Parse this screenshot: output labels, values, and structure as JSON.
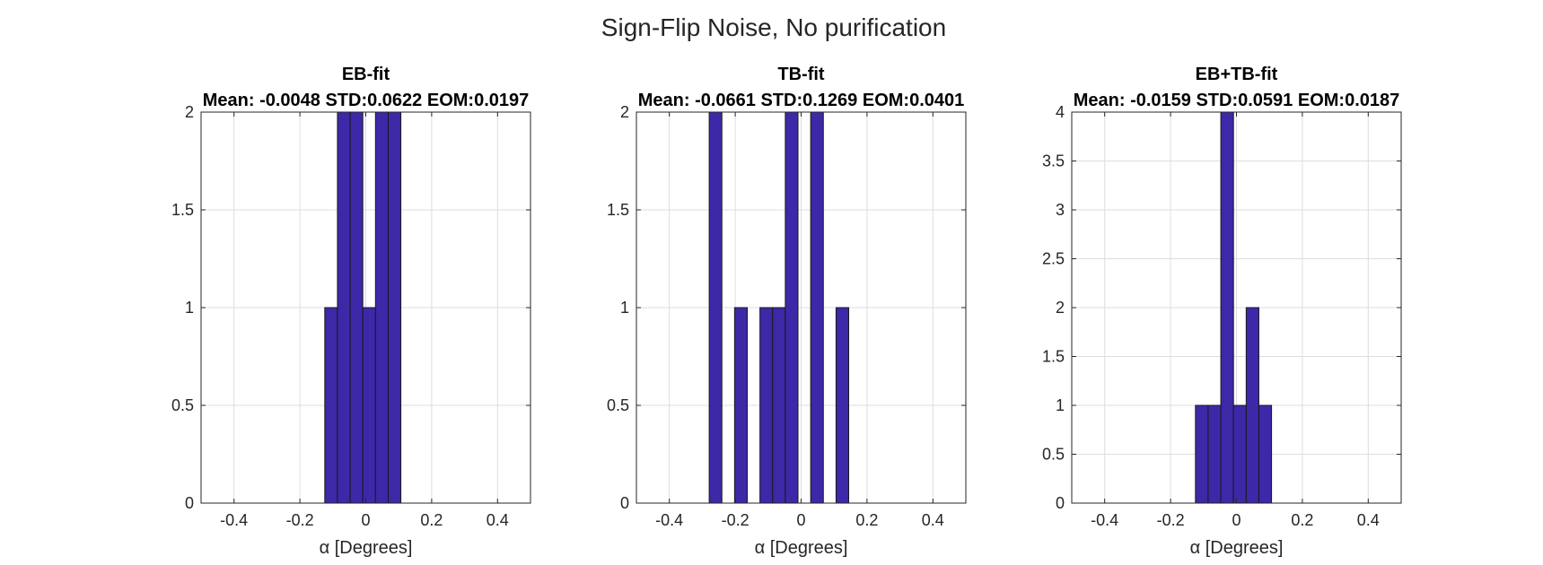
{
  "figure_title": "Sign-Flip Noise, No purification",
  "colors": {
    "bar_fill": "#3d28a8",
    "bar_edge": "#1a1a1a",
    "grid": "#dedede"
  },
  "chart_data": [
    {
      "type": "bar",
      "title": "EB-fit",
      "subtitle": "Mean: -0.0048 STD:0.0622 EOM:0.0197",
      "xlabel": "α [Degrees]",
      "ylabel": "",
      "xlim": [
        -0.5,
        0.5
      ],
      "ylim": [
        0,
        2
      ],
      "xticks": [
        "-0.4",
        "-0.2",
        "0",
        "0.2",
        "0.4"
      ],
      "yticks": [
        "0",
        "0.5",
        "1",
        "1.5",
        "2"
      ],
      "grid": true,
      "bin_width": 0.0385,
      "bins": [
        {
          "x0": -0.1245,
          "count": 1
        },
        {
          "x0": -0.086,
          "count": 2
        },
        {
          "x0": -0.0475,
          "count": 2
        },
        {
          "x0": -0.009,
          "count": 1
        },
        {
          "x0": 0.0295,
          "count": 2
        },
        {
          "x0": 0.068,
          "count": 2
        }
      ]
    },
    {
      "type": "bar",
      "title": "TB-fit",
      "subtitle": "Mean: -0.0661 STD:0.1269 EOM:0.0401",
      "xlabel": "α [Degrees]",
      "ylabel": "",
      "xlim": [
        -0.5,
        0.5
      ],
      "ylim": [
        0,
        2
      ],
      "xticks": [
        "-0.4",
        "-0.2",
        "0",
        "0.2",
        "0.4"
      ],
      "yticks": [
        "0",
        "0.5",
        "1",
        "1.5",
        "2"
      ],
      "grid": true,
      "bin_width": 0.0385,
      "bins": [
        {
          "x0": -0.279,
          "count": 2
        },
        {
          "x0": -0.202,
          "count": 1
        },
        {
          "x0": -0.125,
          "count": 1
        },
        {
          "x0": -0.0865,
          "count": 1
        },
        {
          "x0": -0.048,
          "count": 2
        },
        {
          "x0": 0.029,
          "count": 2
        },
        {
          "x0": 0.106,
          "count": 1
        }
      ]
    },
    {
      "type": "bar",
      "title": "EB+TB-fit",
      "subtitle": "Mean: -0.0159 STD:0.0591 EOM:0.0187",
      "xlabel": "α [Degrees]",
      "ylabel": "",
      "xlim": [
        -0.5,
        0.5
      ],
      "ylim": [
        0,
        4
      ],
      "xticks": [
        "-0.4",
        "-0.2",
        "0",
        "0.2",
        "0.4"
      ],
      "yticks": [
        "0",
        "0.5",
        "1",
        "1.5",
        "2",
        "2.5",
        "3",
        "3.5",
        "4"
      ],
      "grid": true,
      "bin_width": 0.0385,
      "bins": [
        {
          "x0": -0.1245,
          "count": 1
        },
        {
          "x0": -0.086,
          "count": 1
        },
        {
          "x0": -0.0475,
          "count": 4
        },
        {
          "x0": -0.009,
          "count": 1
        },
        {
          "x0": 0.0295,
          "count": 2
        },
        {
          "x0": 0.068,
          "count": 1
        }
      ]
    }
  ]
}
